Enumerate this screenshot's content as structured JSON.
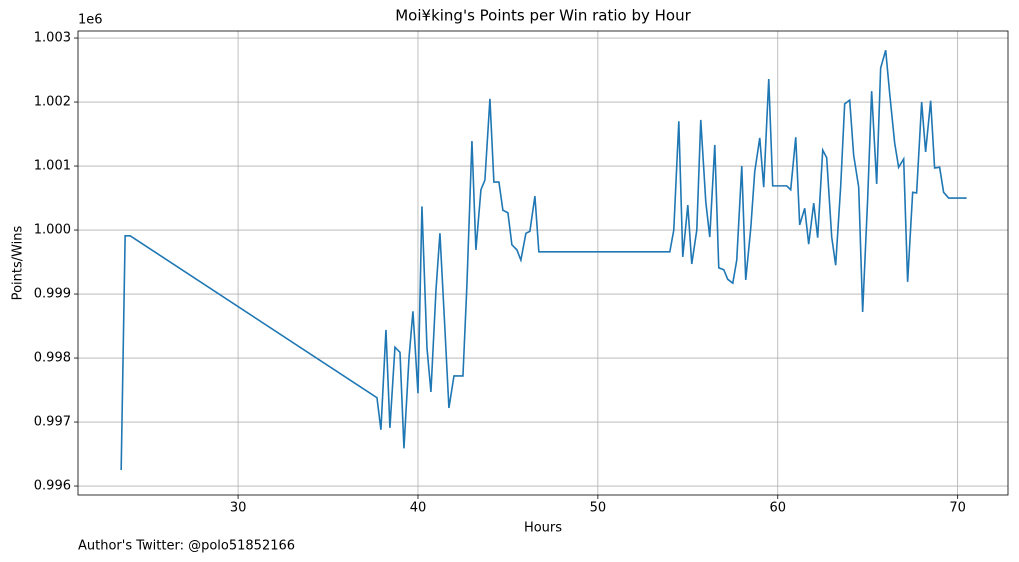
{
  "chart_data": {
    "type": "line",
    "title": "Moi¥king's Points per Win ratio by Hour",
    "xlabel": "Hours",
    "ylabel": "Points/Wins",
    "y_offset_label": "1e6",
    "footnote": "Author's Twitter: @polo51852166",
    "color": "#1f77b4",
    "grid": true,
    "xlim": [
      21.1,
      72.8
    ],
    "ylim": [
      0.99586,
      1.00311
    ],
    "xticks": [
      30,
      40,
      50,
      60,
      70
    ],
    "yticks": [
      0.996,
      0.997,
      0.998,
      0.999,
      {
        "value": 1,
        "label": "1.000"
      },
      1.001,
      1.002,
      1.003
    ],
    "x": [
      23.5,
      23.72,
      24.0,
      37.72,
      37.94,
      38.22,
      38.44,
      38.72,
      39.0,
      39.22,
      39.5,
      39.72,
      40.0,
      40.22,
      40.5,
      40.72,
      41.0,
      41.22,
      41.5,
      41.72,
      42.0,
      42.22,
      42.5,
      42.72,
      43.0,
      43.22,
      43.5,
      43.72,
      44.0,
      44.22,
      44.5,
      44.72,
      45.0,
      45.22,
      45.5,
      45.72,
      46.0,
      46.22,
      46.5,
      46.72,
      54.0,
      54.22,
      54.5,
      54.72,
      55.0,
      55.22,
      55.5,
      55.72,
      56.0,
      56.22,
      56.5,
      56.72,
      57.0,
      57.22,
      57.5,
      57.72,
      58.0,
      58.22,
      58.5,
      58.72,
      59.0,
      59.22,
      59.5,
      59.72,
      60.0,
      60.22,
      60.5,
      60.72,
      61.0,
      61.22,
      61.5,
      61.72,
      62.0,
      62.22,
      62.5,
      62.72,
      63.0,
      63.22,
      63.5,
      63.72,
      64.0,
      64.22,
      64.5,
      64.72,
      65.0,
      65.22,
      65.5,
      65.72,
      66.0,
      66.22,
      66.5,
      66.72,
      67.0,
      67.22,
      67.5,
      67.72,
      68.0,
      68.22,
      68.5,
      68.72,
      69.0,
      69.22,
      69.5,
      69.72,
      70.0,
      70.22,
      70.5
    ],
    "values": [
      0.99625,
      0.99991,
      0.99991,
      0.99738,
      0.99688,
      0.99844,
      0.99691,
      0.99817,
      0.99809,
      0.99659,
      0.998,
      0.99873,
      0.99745,
      1.00037,
      0.99816,
      0.99747,
      0.99906,
      0.99995,
      0.99844,
      0.99722,
      0.99772,
      0.99772,
      0.99772,
      0.99914,
      1.00139,
      0.99969,
      1.00063,
      1.00078,
      1.00205,
      1.00075,
      1.00075,
      1.00031,
      1.00027,
      0.99977,
      0.99969,
      0.99953,
      0.99995,
      0.99998,
      1.00053,
      0.99966,
      0.99966,
      1.0,
      1.0017,
      0.99958,
      1.00039,
      0.99947,
      1.0,
      1.00172,
      1.00044,
      0.99989,
      1.00133,
      0.99941,
      0.99938,
      0.99923,
      0.99917,
      0.99953,
      1.001,
      0.99922,
      1.00003,
      1.00091,
      1.00144,
      1.00067,
      1.00236,
      1.00069,
      1.00069,
      1.00069,
      1.00069,
      1.00063,
      1.00145,
      1.00008,
      1.00034,
      0.99978,
      1.00042,
      0.99988,
      1.00125,
      1.00113,
      0.99989,
      0.99945,
      1.00069,
      1.00197,
      1.00203,
      1.00117,
      1.00067,
      0.99872,
      1.0005,
      1.00217,
      1.00072,
      1.00253,
      1.00281,
      1.00214,
      1.00136,
      1.00098,
      1.00111,
      0.99919,
      1.00059,
      1.00058,
      1.002,
      1.00122,
      1.00202,
      1.00097,
      1.00098,
      1.00059,
      1.0005,
      1.0005,
      1.0005,
      1.0005,
      1.0005
    ]
  }
}
